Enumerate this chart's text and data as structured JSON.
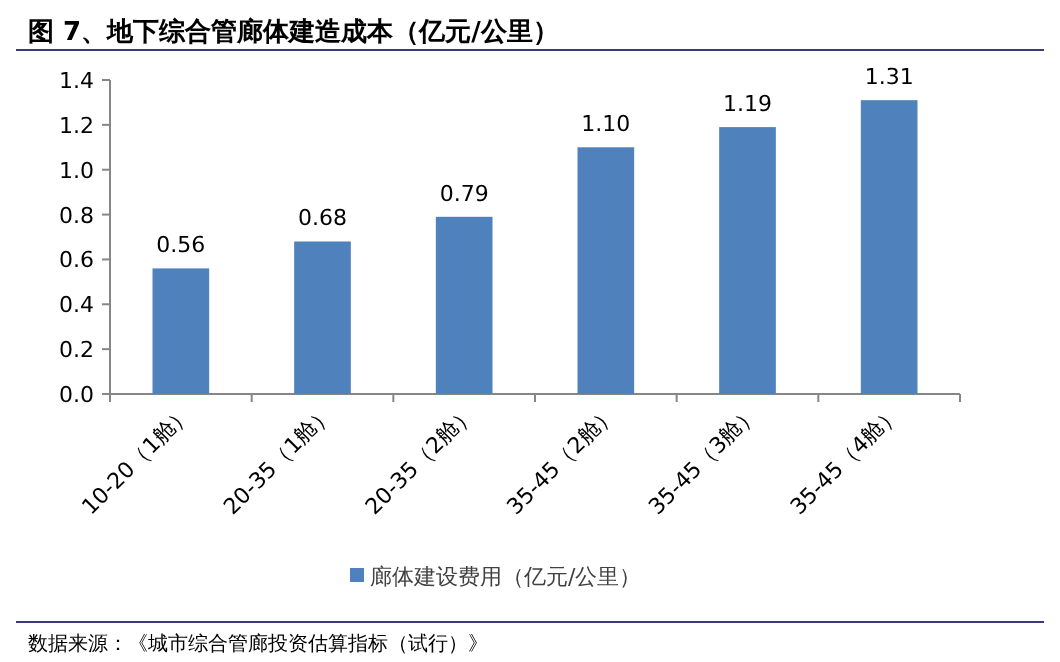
{
  "chart_data": {
    "type": "bar",
    "title": "图 7、地下综合管廊体建造成本（亿元/公里）",
    "categories": [
      "10-20（1舱）",
      "20-35（1舱）",
      "20-35（2舱）",
      "35-45（2舱）",
      "35-45（3舱）",
      "35-45（4舱）"
    ],
    "series": [
      {
        "name": "廊体建设费用（亿元/公里）",
        "color": "#4f81bd",
        "values": [
          0.56,
          0.68,
          0.79,
          1.1,
          1.19,
          1.31
        ]
      }
    ],
    "value_labels": [
      "0.56",
      "0.68",
      "0.79",
      "1.10",
      "1.19",
      "1.31"
    ],
    "ylim": [
      0,
      1.4
    ],
    "yticks": [
      {
        "value": 0,
        "label": "0.0"
      },
      {
        "value": 0.2,
        "label": "0.2"
      },
      {
        "value": 0.4,
        "label": "0.4"
      },
      {
        "value": 0.6,
        "label": "0.6"
      },
      {
        "value": 0.8,
        "label": "0.8"
      },
      {
        "value": 1,
        "label": "1.0"
      },
      {
        "value": 1.2,
        "label": "1.2"
      },
      {
        "value": 1.4,
        "label": "1.4"
      }
    ],
    "legend": "bottom",
    "annotations": [
      "数据来源：《城市综合管廊投资估算指标（试行）》"
    ]
  }
}
